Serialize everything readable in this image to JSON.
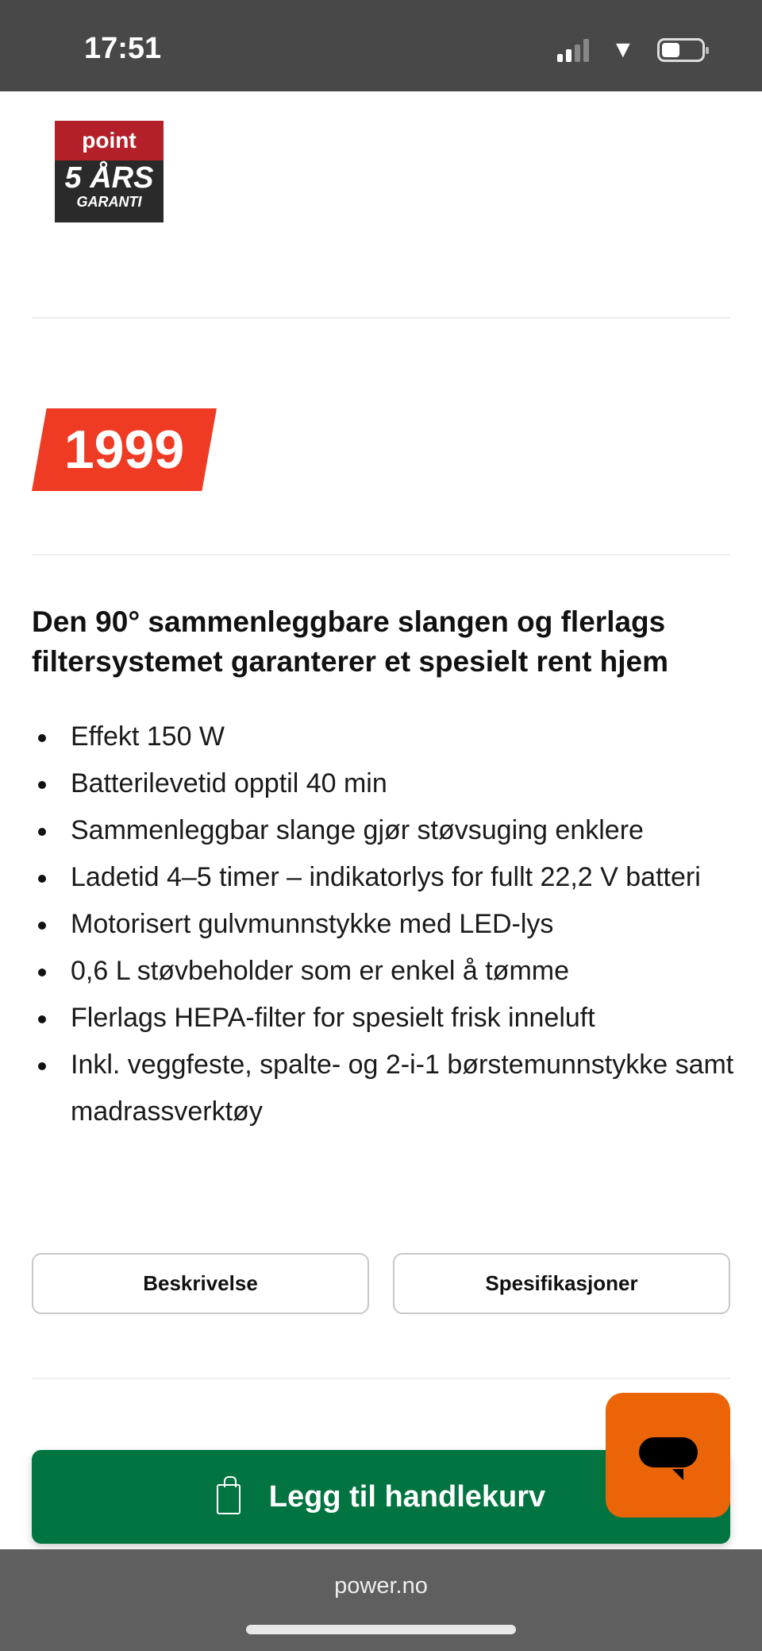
{
  "status_bar": {
    "time": "17:51",
    "icons": [
      "cellular-signal-icon",
      "wifi-icon",
      "battery-icon"
    ]
  },
  "logo": {
    "brand": "point",
    "line1": "5 ÅRS",
    "line2": "GARANTI"
  },
  "price": {
    "value": "1999",
    "color": "#ef3b24"
  },
  "product": {
    "heading": "Den 90° sammenleggbare slangen og flerlags filtersystemet garanterer et spesielt rent hjem",
    "features": [
      "Effekt 150 W",
      "Batterilevetid opptil 40 min",
      "Sammenleggbar slange gjør støvsuging enklere",
      "Ladetid 4–5 timer – indikatorlys for fullt 22,2 V batteri",
      "Motorisert gulvmunnstykke med LED-lys",
      "0,6 L støvbeholder som er enkel å tømme",
      "Flerlags HEPA-filter for spesielt frisk inneluft",
      "Inkl. veggfeste, spalte- og 2-i-1 børstemunnstykke samt madrassverktøy"
    ]
  },
  "tabs": {
    "description": "Beskrivelse",
    "specs": "Spesifikasjoner"
  },
  "cart_button": {
    "label": "Legg til handlekurv",
    "color": "#027441",
    "icon": "shopping-bag-icon"
  },
  "chat_button": {
    "color": "#eb6408",
    "icon": "chat-bubble-icon"
  },
  "browser": {
    "url": "power.no"
  }
}
